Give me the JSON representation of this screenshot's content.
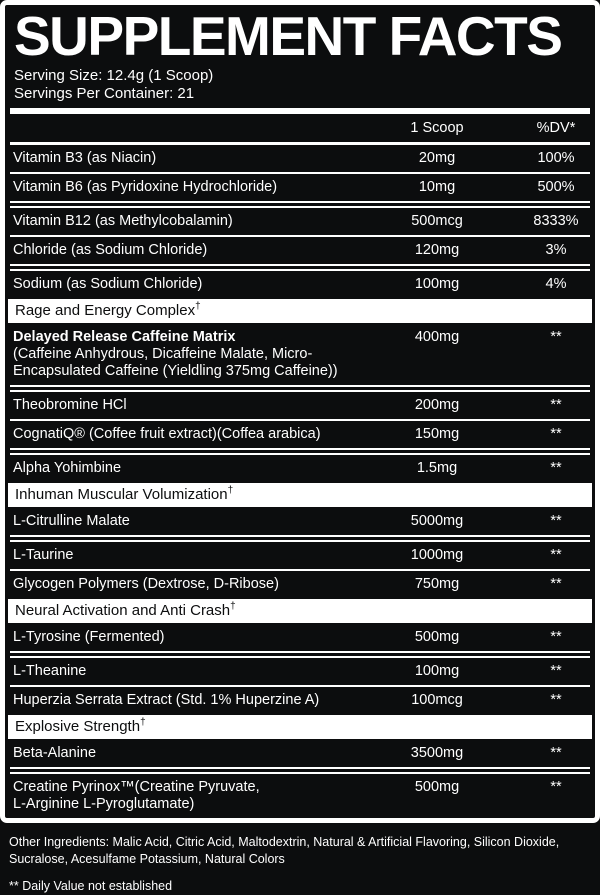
{
  "supplement": {
    "title": "SUPPLEMENT FACTS",
    "serving_size": "Serving Size: 12.4g (1 Scoop)",
    "servings_per_container": "Servings Per Container: 21",
    "columns": {
      "amount": "1 Scoop",
      "dv": "%DV*"
    },
    "rows": [
      {
        "type": "nutrient",
        "name": "Vitamin B3 (as Niacin)",
        "amount": "20mg",
        "dv": "100%"
      },
      {
        "type": "nutrient",
        "name": "Vitamin B6 (as Pyridoxine Hydrochloride)",
        "amount": "10mg",
        "dv": "500%"
      },
      {
        "type": "nutrient",
        "name": "Vitamin B12 (as Methylcobalamin)",
        "amount": "500mcg",
        "dv": "8333%"
      },
      {
        "type": "nutrient",
        "name": "Chloride (as Sodium Chloride)",
        "amount": "120mg",
        "dv": "3%"
      },
      {
        "type": "nutrient",
        "name": "Sodium (as Sodium Chloride)",
        "amount": "100mg",
        "dv": "4%"
      },
      {
        "type": "section",
        "title": "Rage and Energy Complex",
        "mark": "†"
      },
      {
        "type": "nutrient",
        "name": "Delayed Release Caffeine Matrix",
        "sub": "(Caffeine Anhydrous, Dicaffeine Malate, Micro-Encapsulated Caffeine (Yieldling 375mg Caffeine))",
        "amount": "400mg",
        "dv": "**"
      },
      {
        "type": "nutrient",
        "name": "Theobromine HCl",
        "amount": "200mg",
        "dv": "**"
      },
      {
        "type": "nutrient",
        "name": "CognatiQ® (Coffee fruit extract)(Coffea arabica)",
        "amount": "150mg",
        "dv": "**"
      },
      {
        "type": "nutrient",
        "name": "Alpha Yohimbine",
        "amount": "1.5mg",
        "dv": "**"
      },
      {
        "type": "section",
        "title": "Inhuman Muscular Volumization",
        "mark": "†"
      },
      {
        "type": "nutrient",
        "name": "L-Citrulline Malate",
        "amount": "5000mg",
        "dv": "**"
      },
      {
        "type": "nutrient",
        "name": "L-Taurine",
        "amount": "1000mg",
        "dv": "**"
      },
      {
        "type": "nutrient",
        "name": "Glycogen Polymers (Dextrose, D-Ribose)",
        "amount": "750mg",
        "dv": "**"
      },
      {
        "type": "section",
        "title": "Neural Activation and Anti Crash",
        "mark": "†"
      },
      {
        "type": "nutrient",
        "name": "L-Tyrosine (Fermented)",
        "amount": "500mg",
        "dv": "**"
      },
      {
        "type": "nutrient",
        "name": "L-Theanine",
        "amount": "100mg",
        "dv": "**"
      },
      {
        "type": "nutrient",
        "name": "Huperzia Serrata Extract (Std. 1% Huperzine A)",
        "amount": "100mcg",
        "dv": "**"
      },
      {
        "type": "section",
        "title": "Explosive Strength",
        "mark": "†"
      },
      {
        "type": "nutrient",
        "name": "Beta-Alanine",
        "amount": "3500mg",
        "dv": "**"
      },
      {
        "type": "nutrient",
        "name": "Creatine Pyrinox™(Creatine Pyruvate,",
        "sub": "L-Arginine L-Pyroglutamate)",
        "amount": "500mg",
        "dv": "**"
      }
    ],
    "footer": {
      "other_ingredients": "Other Ingredients: Malic Acid, Citric Acid, Maltodextrin, Natural & Artificial Flavoring, Silicon Dioxide, Sucralose, Acesulfame Potassium, Natural Colors",
      "dv_note": "** Daily Value not established"
    },
    "colors": {
      "background": "#0c0d0e",
      "text": "#ffffff",
      "section_bar_bg": "#ffffff",
      "section_bar_text": "#0c0d0e"
    }
  }
}
